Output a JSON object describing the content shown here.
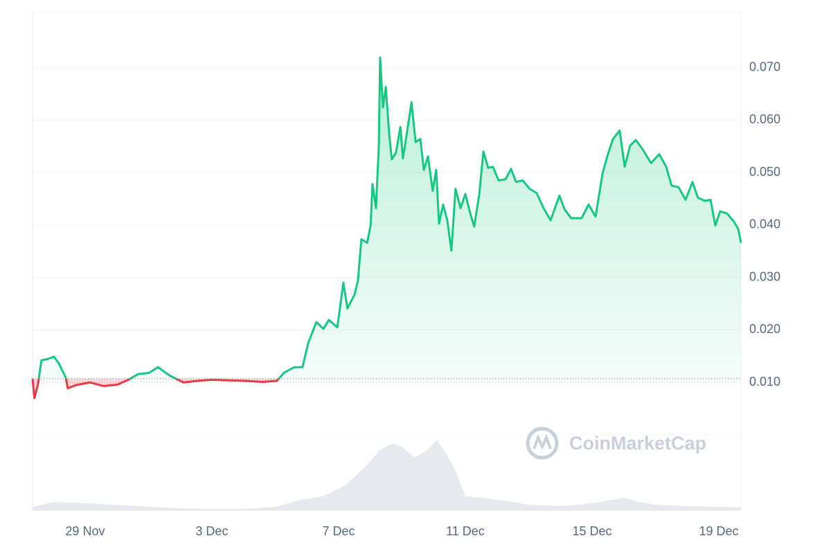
{
  "chart_data": {
    "type": "area",
    "x": [
      -1.66,
      -1.6,
      -1.49,
      -1.38,
      -1.16,
      -0.98,
      -0.83,
      -0.61,
      -0.55,
      -0.28,
      0.15,
      0.59,
      1.03,
      1.36,
      1.68,
      2.01,
      2.3,
      2.67,
      3.1,
      3.54,
      3.98,
      4.52,
      5.07,
      5.62,
      6.05,
      6.27,
      6.6,
      6.86,
      7.04,
      7.3,
      7.52,
      7.69,
      7.96,
      8.15,
      8.28,
      8.5,
      8.61,
      8.72,
      8.9,
      9.01,
      9.07,
      9.18,
      9.27,
      9.31,
      9.4,
      9.49,
      9.6,
      9.68,
      9.81,
      9.95,
      10.03,
      10.16,
      10.3,
      10.43,
      10.58,
      10.69,
      10.82,
      10.97,
      11.08,
      11.17,
      11.3,
      11.43,
      11.56,
      11.69,
      11.85,
      12.0,
      12.17,
      12.28,
      12.44,
      12.57,
      12.72,
      12.87,
      13.05,
      13.27,
      13.44,
      13.6,
      13.81,
      14.03,
      14.25,
      14.47,
      14.69,
      14.97,
      15.13,
      15.34,
      15.67,
      15.89,
      16.11,
      16.33,
      16.48,
      16.66,
      16.87,
      17.03,
      17.2,
      17.38,
      17.6,
      17.86,
      18.12,
      18.34,
      18.51,
      18.73,
      18.95,
      19.17,
      19.34,
      19.56,
      19.74,
      19.89,
      20.04,
      20.26,
      20.48,
      20.61,
      20.7
    ],
    "values": [
      0.0107,
      0.007,
      0.0096,
      0.0142,
      0.0145,
      0.0149,
      0.0136,
      0.0109,
      0.0089,
      0.0095,
      0.01,
      0.0093,
      0.0096,
      0.0105,
      0.0116,
      0.0118,
      0.0129,
      0.0113,
      0.01,
      0.0103,
      0.0105,
      0.0104,
      0.0103,
      0.0101,
      0.0103,
      0.0118,
      0.0129,
      0.0129,
      0.0175,
      0.0215,
      0.0202,
      0.0219,
      0.0205,
      0.029,
      0.0241,
      0.0267,
      0.0294,
      0.0373,
      0.0366,
      0.0399,
      0.0478,
      0.0432,
      0.0551,
      0.0719,
      0.0624,
      0.0663,
      0.0571,
      0.0525,
      0.0538,
      0.0587,
      0.0527,
      0.0577,
      0.0634,
      0.0558,
      0.0564,
      0.0505,
      0.0531,
      0.0465,
      0.0505,
      0.0403,
      0.0439,
      0.0409,
      0.0351,
      0.0469,
      0.0432,
      0.0459,
      0.0419,
      0.0397,
      0.0459,
      0.054,
      0.0509,
      0.0511,
      0.0485,
      0.0487,
      0.0507,
      0.0482,
      0.0485,
      0.0469,
      0.0461,
      0.0432,
      0.0409,
      0.0456,
      0.043,
      0.0413,
      0.0413,
      0.0439,
      0.0416,
      0.0498,
      0.0531,
      0.0564,
      0.058,
      0.0511,
      0.0551,
      0.0562,
      0.0544,
      0.0518,
      0.0535,
      0.0511,
      0.0475,
      0.0472,
      0.0448,
      0.0482,
      0.0452,
      0.0446,
      0.0448,
      0.0399,
      0.0426,
      0.0422,
      0.0406,
      0.0393,
      0.0366
    ],
    "baseline": 0.0107,
    "up_color": "#16c784",
    "down_color": "#ea3943",
    "volume_x": [
      -1.66,
      -1,
      0,
      1,
      2,
      3,
      4,
      5,
      6,
      6.8,
      7.5,
      8.2,
      8.8,
      9.3,
      9.7,
      10.0,
      10.4,
      10.8,
      11.1,
      11.4,
      11.7,
      12.0,
      12.5,
      13,
      13.5,
      14,
      15,
      16,
      17,
      17.5,
      18,
      19,
      20,
      20.7
    ],
    "volume_values": [
      5,
      12,
      10,
      8,
      5,
      3,
      2,
      2,
      5,
      15,
      20,
      35,
      60,
      85,
      95,
      90,
      75,
      85,
      100,
      80,
      55,
      20,
      18,
      15,
      12,
      8,
      6,
      10,
      18,
      12,
      8,
      6,
      5,
      4
    ],
    "volume_color": "#e6e9ee",
    "xlim": [
      -1.66,
      20.7
    ],
    "xticks": [
      {
        "value": 0,
        "label": "29 Nov"
      },
      {
        "value": 4,
        "label": "3 Dec"
      },
      {
        "value": 8,
        "label": "7 Dec"
      },
      {
        "value": 12,
        "label": "11 Dec"
      },
      {
        "value": 16,
        "label": "15 Dec"
      },
      {
        "value": 20,
        "label": "19 Dec"
      }
    ],
    "ylim": [
      0,
      0.0805
    ],
    "yticks": [
      {
        "value": 0.01,
        "label": "0.010"
      },
      {
        "value": 0.02,
        "label": "0.020"
      },
      {
        "value": 0.03,
        "label": "0.030"
      },
      {
        "value": 0.04,
        "label": "0.040"
      },
      {
        "value": 0.05,
        "label": "0.050"
      },
      {
        "value": 0.06,
        "label": "0.060"
      },
      {
        "value": 0.07,
        "label": "0.070"
      }
    ],
    "grid": true,
    "watermark": "CoinMarketCap"
  }
}
